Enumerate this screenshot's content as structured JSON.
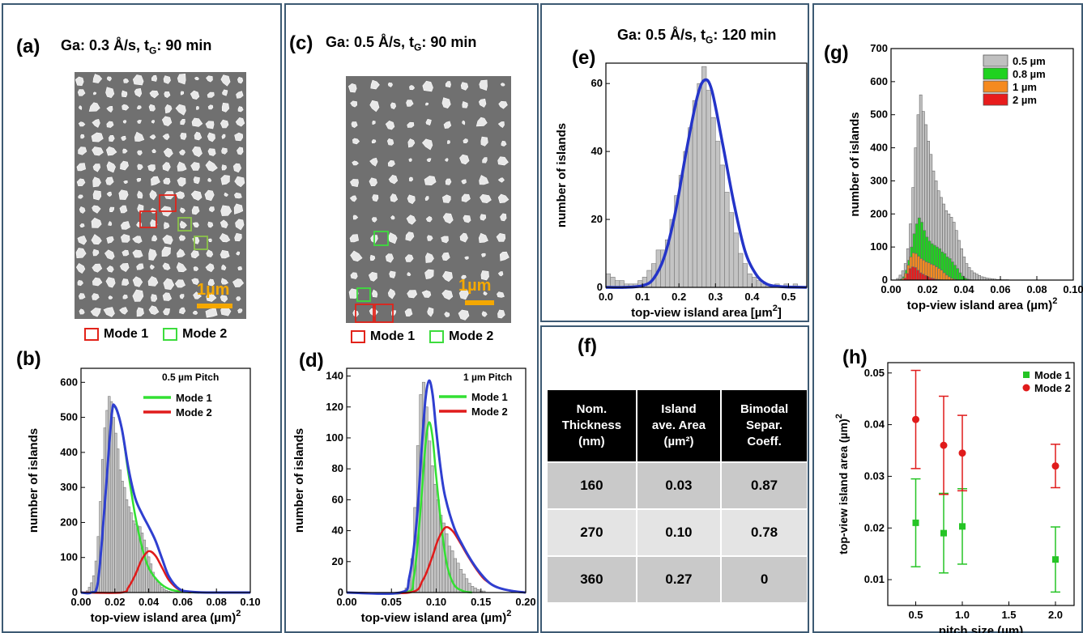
{
  "panel_a": {
    "label": "(a)",
    "title_pre": "Ga: 0.3 Å/s, t",
    "title_sub": "G",
    "title_post": ": 90 min",
    "scalebar": "1µm"
  },
  "panel_c": {
    "label": "(c)",
    "title_pre": "Ga: 0.5 Å/s, t",
    "title_sub": "G",
    "title_post": ": 90 min",
    "scalebar": "1µm"
  },
  "panel_e": {
    "label": "(e)",
    "title_pre": "Ga: 0.5 Å/s, t",
    "title_sub": "G",
    "title_post": ": 120 min"
  },
  "panel_b": {
    "label": "(b)"
  },
  "panel_d": {
    "label": "(d)"
  },
  "panel_f": {
    "label": "(f)"
  },
  "panel_g": {
    "label": "(g)"
  },
  "panel_h": {
    "label": "(h)"
  },
  "mode_legend": {
    "mode1": "Mode 1",
    "mode2": "Mode 2",
    "mode1_color": "#e2231a",
    "mode2_color": "#3ddc3d"
  },
  "table_f": {
    "headers": [
      "Nom.\nThickness\n(nm)",
      "Island\nave. Area\n(µm²)",
      "Bimodal\nSepar.\nCoeff."
    ],
    "rows": [
      [
        "160",
        "0.03",
        "0.87"
      ],
      [
        "270",
        "0.10",
        "0.78"
      ],
      [
        "360",
        "0.27",
        "0"
      ]
    ]
  },
  "chart_data": [
    {
      "id": "b",
      "type": "bar",
      "xlabel": "top-view island area (µm)",
      "xlabel_sup": "2",
      "ylabel": "number of islands",
      "xlim": [
        0,
        0.1
      ],
      "ylim": [
        0,
        640
      ],
      "xticks": [
        "0.00",
        "0.02",
        "0.04",
        "0.06",
        "0.08",
        "0.10"
      ],
      "yticks": [
        "0",
        "100",
        "200",
        "300",
        "400",
        "500",
        "600"
      ],
      "annotation": "0.5 µm Pitch",
      "histogram": {
        "bin_start": 0.003,
        "bin_width": 0.0013,
        "values": [
          5,
          15,
          28,
          48,
          90,
          160,
          260,
          380,
          470,
          520,
          560,
          545,
          500,
          455,
          410,
          350,
          318,
          300,
          265,
          245,
          228,
          205,
          196,
          190,
          188,
          170,
          150,
          128,
          102,
          82,
          58,
          42,
          30,
          22,
          15,
          10,
          6,
          4,
          2
        ]
      },
      "series": [
        {
          "name": "Mode 1",
          "color": "#33e033",
          "x": [
            0.0,
            0.006,
            0.01,
            0.014,
            0.018,
            0.02,
            0.024,
            0.028,
            0.032,
            0.036,
            0.04,
            0.046,
            0.052,
            0.06,
            0.07
          ],
          "y": [
            0,
            0,
            30,
            250,
            500,
            530,
            470,
            340,
            220,
            130,
            70,
            30,
            10,
            2,
            0
          ]
        },
        {
          "name": "Mode 2",
          "color": "#e01b1b",
          "x": [
            0.0,
            0.024,
            0.028,
            0.032,
            0.036,
            0.04,
            0.044,
            0.048,
            0.052,
            0.058,
            0.065
          ],
          "y": [
            0,
            0,
            15,
            50,
            95,
            118,
            105,
            70,
            35,
            8,
            0
          ]
        },
        {
          "name": "",
          "color": "#2f3fd0",
          "x": [
            0.0,
            0.006,
            0.01,
            0.014,
            0.018,
            0.02,
            0.024,
            0.028,
            0.032,
            0.036,
            0.04,
            0.044,
            0.048,
            0.052,
            0.058,
            0.065,
            0.075,
            0.1
          ],
          "y": [
            0,
            0,
            30,
            250,
            500,
            532,
            470,
            355,
            270,
            225,
            188,
            148,
            95,
            45,
            10,
            2,
            0,
            0
          ]
        }
      ]
    },
    {
      "id": "d",
      "type": "bar",
      "xlabel": "top-view island area (µm)",
      "xlabel_sup": "2",
      "ylabel": "number of islands",
      "xlim": [
        0,
        0.2
      ],
      "ylim": [
        0,
        145
      ],
      "xticks": [
        "0.00",
        "0.05",
        "0.10",
        "0.15",
        "0.20"
      ],
      "yticks": [
        "0",
        "20",
        "40",
        "60",
        "80",
        "100",
        "120",
        "140"
      ],
      "annotation": "1 µm Pitch",
      "histogram": {
        "bin_start": 0.062,
        "bin_width": 0.0032,
        "values": [
          1,
          3,
          8,
          22,
          55,
          95,
          128,
          136,
          120,
          98,
          82,
          70,
          60,
          50,
          45,
          38,
          30,
          27,
          22,
          19,
          15,
          12,
          9,
          6,
          4,
          3,
          2,
          1,
          1,
          0,
          0,
          0
        ]
      },
      "series": [
        {
          "name": "Mode 1",
          "color": "#33e033",
          "x": [
            0.0,
            0.065,
            0.075,
            0.082,
            0.088,
            0.092,
            0.096,
            0.1,
            0.106,
            0.112,
            0.12,
            0.13,
            0.14
          ],
          "y": [
            0,
            0,
            10,
            50,
            95,
            110,
            100,
            75,
            42,
            18,
            5,
            1,
            0
          ]
        },
        {
          "name": "Mode 2",
          "color": "#e01b1b",
          "x": [
            0.0,
            0.07,
            0.085,
            0.095,
            0.102,
            0.11,
            0.118,
            0.126,
            0.135,
            0.145,
            0.155,
            0.17,
            0.185,
            0.2
          ],
          "y": [
            0,
            0,
            8,
            22,
            34,
            42,
            40,
            33,
            24,
            15,
            8,
            3,
            1,
            0
          ]
        },
        {
          "name": "",
          "color": "#2f3fd0",
          "x": [
            0.0,
            0.06,
            0.07,
            0.078,
            0.084,
            0.088,
            0.092,
            0.096,
            0.1,
            0.105,
            0.11,
            0.12,
            0.13,
            0.14,
            0.15,
            0.16,
            0.17,
            0.185,
            0.2
          ],
          "y": [
            0,
            0,
            10,
            45,
            95,
            125,
            137,
            128,
            105,
            80,
            62,
            42,
            30,
            20,
            12,
            6,
            3,
            1,
            0
          ]
        }
      ]
    },
    {
      "id": "e",
      "type": "bar",
      "xlabel": "top-view island area [µm",
      "xlabel_sup": "2",
      "xlabel_post": "]",
      "ylabel": "number of islands",
      "xlim": [
        0,
        0.55
      ],
      "ylim": [
        0,
        66
      ],
      "xticks": [
        "0.0",
        "0.1",
        "0.2",
        "0.3",
        "0.4",
        "0.5"
      ],
      "yticks": [
        "0",
        "20",
        "40",
        "60"
      ],
      "histogram": {
        "bin_start": 0.0,
        "bin_width": 0.0125,
        "values": [
          4,
          3,
          2,
          2,
          1,
          1,
          1,
          2,
          3,
          5,
          7,
          11,
          11,
          14,
          20,
          27,
          33,
          40,
          47,
          55,
          60,
          65,
          58,
          50,
          43,
          36,
          28,
          22,
          16,
          10,
          7,
          4,
          3,
          2,
          1,
          1,
          0,
          1,
          0,
          1,
          0,
          1,
          0,
          0
        ]
      },
      "series": [
        {
          "name": "",
          "color": "#2434c8",
          "x": [
            0.0,
            0.05,
            0.1,
            0.13,
            0.16,
            0.19,
            0.22,
            0.25,
            0.27,
            0.29,
            0.32,
            0.35,
            0.38,
            0.41,
            0.44,
            0.48,
            0.55
          ],
          "y": [
            0,
            0,
            0.5,
            2.5,
            9,
            22,
            40,
            56,
            61,
            58,
            42,
            25,
            11,
            4,
            1,
            0.2,
            0
          ]
        }
      ]
    },
    {
      "id": "g",
      "type": "bar",
      "xlabel": "top-view island area (µm)",
      "xlabel_sup": "2",
      "ylabel": "number of islands",
      "xlim": [
        0,
        0.1
      ],
      "ylim": [
        0,
        700
      ],
      "xticks": [
        "0.00",
        "0.02",
        "0.04",
        "0.06",
        "0.08",
        "0.10"
      ],
      "yticks": [
        "0",
        "100",
        "200",
        "300",
        "400",
        "500",
        "600",
        "700"
      ],
      "legend_position": "top-right",
      "series": [
        {
          "name": "0.5 µm",
          "color": "#c0c0c0",
          "bin_start": 0.003,
          "bin_width": 0.0014,
          "values": [
            5,
            15,
            28,
            50,
            95,
            170,
            280,
            400,
            500,
            560,
            510,
            470,
            420,
            380,
            330,
            300,
            270,
            250,
            230,
            210,
            200,
            190,
            175,
            150,
            120,
            95,
            70,
            50,
            38,
            28,
            22,
            18,
            14,
            10,
            8,
            6,
            5,
            4,
            3,
            2,
            2,
            1,
            1,
            1
          ]
        },
        {
          "name": "0.8 µm",
          "color": "#1fd21f",
          "bin_start": 0.005,
          "bin_width": 0.0014,
          "values": [
            3,
            10,
            30,
            60,
            100,
            140,
            170,
            188,
            175,
            150,
            130,
            118,
            110,
            105,
            100,
            95,
            85,
            80,
            70,
            65,
            55,
            45,
            35,
            22,
            12,
            6,
            3,
            1
          ]
        },
        {
          "name": "1 µm",
          "color": "#f58a1f",
          "bin_start": 0.006,
          "bin_width": 0.0014,
          "values": [
            5,
            20,
            45,
            70,
            82,
            80,
            72,
            65,
            60,
            55,
            52,
            48,
            45,
            40,
            35,
            30,
            22,
            15,
            10,
            5,
            3,
            1
          ]
        },
        {
          "name": "2 µm",
          "color": "#e81c1c",
          "bin_start": 0.007,
          "bin_width": 0.0014,
          "values": [
            6,
            20,
            35,
            40,
            38,
            30,
            22,
            18,
            14,
            10,
            7,
            5,
            3,
            2,
            1
          ]
        }
      ]
    },
    {
      "id": "h",
      "type": "scatter",
      "xlabel": "pitch size (µm)",
      "ylabel": "top-view island area (µm)",
      "ylabel_sup": "2",
      "xlim": [
        0.2,
        2.2
      ],
      "ylim": [
        0.005,
        0.052
      ],
      "xticks": [
        "0.5",
        "1.0",
        "1.5",
        "2.0"
      ],
      "yticks": [
        "0.01",
        "0.02",
        "0.03",
        "0.04",
        "0.05"
      ],
      "legend_position": "top-right",
      "series": [
        {
          "name": "Mode 1",
          "color": "#25c425",
          "x": [
            0.5,
            0.8,
            1.0,
            2.0
          ],
          "y": [
            0.021,
            0.019,
            0.0203,
            0.0139
          ],
          "err": [
            0.0085,
            0.0077,
            0.0073,
            0.0063
          ]
        },
        {
          "name": "Mode 2",
          "color": "#e01b1b",
          "x": [
            0.5,
            0.8,
            1.0,
            2.0
          ],
          "y": [
            0.041,
            0.036,
            0.0345,
            0.032
          ],
          "err": [
            0.0095,
            0.0095,
            0.0073,
            0.0042
          ]
        }
      ]
    }
  ]
}
